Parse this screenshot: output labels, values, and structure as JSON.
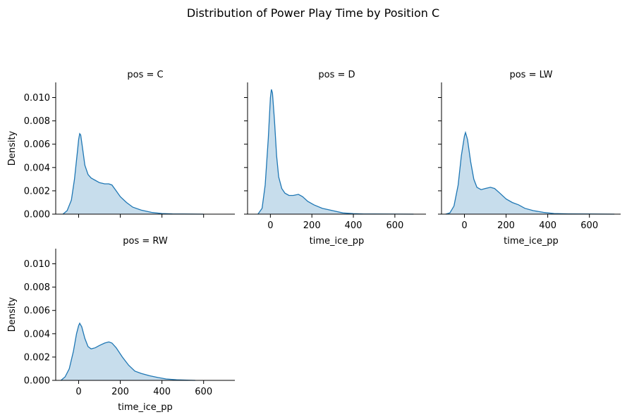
{
  "figure": {
    "title": "Distribution of Power Play Time by Position C"
  },
  "chart_data": {
    "type": "area",
    "title": "Distribution of Power Play Time by Position C",
    "xlabel": "time_ice_pp",
    "ylabel": "Density",
    "xlim": [
      -110,
      750
    ],
    "ylim": [
      0,
      0.0113
    ],
    "xticks": [
      0,
      200,
      400,
      600
    ],
    "yticks": [
      0.0,
      0.002,
      0.004,
      0.006,
      0.008,
      0.01
    ],
    "ytick_labels": [
      "0.000",
      "0.002",
      "0.004",
      "0.006",
      "0.008",
      "0.010"
    ],
    "grid": false,
    "line_color": "#1f77b4",
    "panels": [
      {
        "title": "pos = C",
        "show_xtick_labels": false,
        "show_ytick_labels": true,
        "show_xlabel": false,
        "show_ylabel": true,
        "points": [
          [
            -75,
            0
          ],
          [
            -55,
            0.0003
          ],
          [
            -35,
            0.0012
          ],
          [
            -20,
            0.003
          ],
          [
            -5,
            0.0055
          ],
          [
            0,
            0.0064
          ],
          [
            5,
            0.0069
          ],
          [
            10,
            0.0068
          ],
          [
            20,
            0.0055
          ],
          [
            30,
            0.0042
          ],
          [
            45,
            0.0034
          ],
          [
            60,
            0.0031
          ],
          [
            80,
            0.0029
          ],
          [
            100,
            0.0027
          ],
          [
            125,
            0.0026
          ],
          [
            145,
            0.0026
          ],
          [
            160,
            0.0025
          ],
          [
            180,
            0.002
          ],
          [
            200,
            0.0015
          ],
          [
            230,
            0.001
          ],
          [
            260,
            0.0006
          ],
          [
            300,
            0.00035
          ],
          [
            350,
            0.00015
          ],
          [
            400,
            5e-05
          ],
          [
            450,
            2e-05
          ],
          [
            500,
            1e-05
          ],
          [
            600,
            0
          ]
        ]
      },
      {
        "title": "pos = D",
        "show_xtick_labels": true,
        "show_ytick_labels": false,
        "show_xlabel": true,
        "show_ylabel": false,
        "points": [
          [
            -60,
            0
          ],
          [
            -40,
            0.0005
          ],
          [
            -25,
            0.0025
          ],
          [
            -10,
            0.0065
          ],
          [
            0,
            0.01
          ],
          [
            5,
            0.0107
          ],
          [
            10,
            0.0104
          ],
          [
            20,
            0.008
          ],
          [
            30,
            0.005
          ],
          [
            40,
            0.0032
          ],
          [
            55,
            0.0022
          ],
          [
            70,
            0.0018
          ],
          [
            90,
            0.0016
          ],
          [
            110,
            0.0016
          ],
          [
            135,
            0.0017
          ],
          [
            155,
            0.0015
          ],
          [
            180,
            0.0011
          ],
          [
            210,
            0.0008
          ],
          [
            250,
            0.0005
          ],
          [
            300,
            0.0003
          ],
          [
            350,
            0.0001
          ],
          [
            400,
            4e-05
          ],
          [
            450,
            1e-05
          ],
          [
            500,
            1e-05
          ],
          [
            600,
            5e-06
          ],
          [
            690,
            0
          ]
        ]
      },
      {
        "title": "pos = LW",
        "show_xtick_labels": true,
        "show_ytick_labels": false,
        "show_xlabel": true,
        "show_ylabel": false,
        "points": [
          [
            -90,
            0
          ],
          [
            -70,
            0.0001
          ],
          [
            -50,
            0.0007
          ],
          [
            -30,
            0.0025
          ],
          [
            -15,
            0.005
          ],
          [
            0,
            0.0067
          ],
          [
            5,
            0.007
          ],
          [
            15,
            0.0064
          ],
          [
            30,
            0.0045
          ],
          [
            45,
            0.003
          ],
          [
            60,
            0.0023
          ],
          [
            80,
            0.0021
          ],
          [
            100,
            0.0022
          ],
          [
            125,
            0.0023
          ],
          [
            145,
            0.0022
          ],
          [
            170,
            0.0018
          ],
          [
            200,
            0.0013
          ],
          [
            230,
            0.001
          ],
          [
            260,
            0.0008
          ],
          [
            290,
            0.0005
          ],
          [
            330,
            0.0003
          ],
          [
            380,
            0.00015
          ],
          [
            430,
            5e-05
          ],
          [
            500,
            2e-05
          ],
          [
            600,
            1e-05
          ],
          [
            720,
            0
          ]
        ]
      },
      {
        "title": "pos = RW",
        "show_xtick_labels": true,
        "show_ytick_labels": true,
        "show_xlabel": true,
        "show_ylabel": true,
        "points": [
          [
            -85,
            0
          ],
          [
            -65,
            0.0003
          ],
          [
            -45,
            0.001
          ],
          [
            -25,
            0.0025
          ],
          [
            -10,
            0.004
          ],
          [
            0,
            0.0047
          ],
          [
            5,
            0.0049
          ],
          [
            15,
            0.0046
          ],
          [
            30,
            0.0036
          ],
          [
            45,
            0.0029
          ],
          [
            60,
            0.0027
          ],
          [
            80,
            0.0028
          ],
          [
            100,
            0.003
          ],
          [
            125,
            0.0032
          ],
          [
            145,
            0.0033
          ],
          [
            160,
            0.0032
          ],
          [
            180,
            0.0028
          ],
          [
            210,
            0.002
          ],
          [
            240,
            0.0013
          ],
          [
            270,
            0.0008
          ],
          [
            300,
            0.0006
          ],
          [
            340,
            0.0004
          ],
          [
            380,
            0.00025
          ],
          [
            420,
            0.00012
          ],
          [
            470,
            5e-05
          ],
          [
            520,
            2e-05
          ],
          [
            560,
            0
          ]
        ]
      }
    ]
  }
}
